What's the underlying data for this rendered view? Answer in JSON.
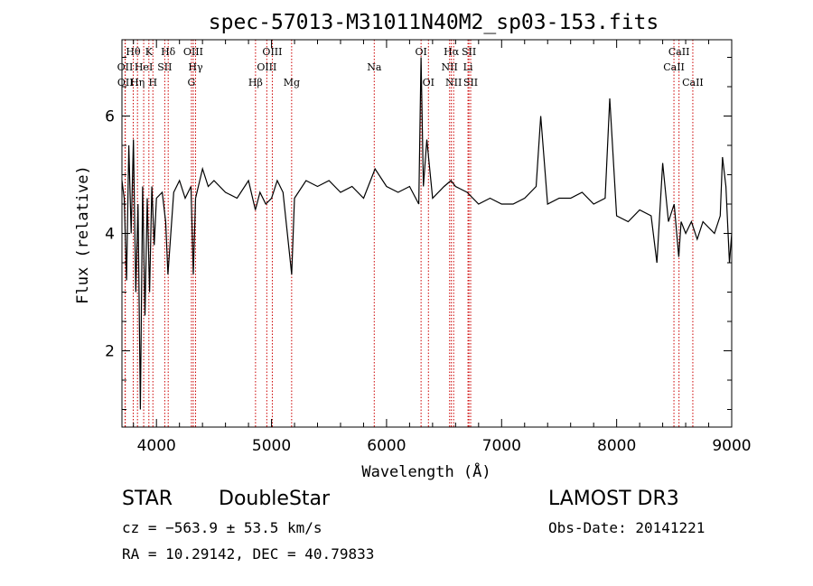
{
  "chart_data": {
    "type": "line",
    "title": "spec-57013-M31011N40M2_sp03-153.fits",
    "xlabel": "Wavelength (Å)",
    "ylabel": "Flux (relative)",
    "xlim": [
      3700,
      9000
    ],
    "ylim": [
      0.7,
      7.3
    ],
    "x_ticks": [
      4000,
      5000,
      6000,
      7000,
      8000,
      9000
    ],
    "y_ticks": [
      2,
      4,
      6
    ],
    "line_color": "#000000",
    "marker_color": "#cc0000",
    "lines": [
      {
        "label": "OII",
        "wave": 3727,
        "row": 1
      },
      {
        "label": "OII",
        "wave": 3729,
        "row": 2
      },
      {
        "label": "Hθ",
        "wave": 3798,
        "row": 0
      },
      {
        "label": "Hη",
        "wave": 3835,
        "row": 2
      },
      {
        "label": "HeI",
        "wave": 3889,
        "row": 1
      },
      {
        "label": "K",
        "wave": 3934,
        "row": 0
      },
      {
        "label": "H",
        "wave": 3969,
        "row": 2
      },
      {
        "label": "SII",
        "wave": 4072,
        "row": 1
      },
      {
        "label": "Hδ",
        "wave": 4102,
        "row": 0
      },
      {
        "label": "G",
        "wave": 4304,
        "row": 2
      },
      {
        "label": "OIII",
        "wave": 4320,
        "row": 0
      },
      {
        "label": "Hγ",
        "wave": 4340,
        "row": 1
      },
      {
        "label": "Hβ",
        "wave": 4861,
        "row": 2
      },
      {
        "label": "OIII",
        "wave": 4959,
        "row": 1
      },
      {
        "label": "OIII",
        "wave": 5007,
        "row": 0
      },
      {
        "label": "Mg",
        "wave": 5175,
        "row": 2
      },
      {
        "label": "Na",
        "wave": 5893,
        "row": 1
      },
      {
        "label": "OI",
        "wave": 6300,
        "row": 0
      },
      {
        "label": "OI",
        "wave": 6364,
        "row": 2
      },
      {
        "label": "NII",
        "wave": 6548,
        "row": 1
      },
      {
        "label": "Hα",
        "wave": 6563,
        "row": 0
      },
      {
        "label": "NII",
        "wave": 6583,
        "row": 2
      },
      {
        "label": "Li",
        "wave": 6708,
        "row": 1
      },
      {
        "label": "SII",
        "wave": 6716,
        "row": 0
      },
      {
        "label": "SII",
        "wave": 6731,
        "row": 2
      },
      {
        "label": "CaII",
        "wave": 8498,
        "row": 1
      },
      {
        "label": "CaII",
        "wave": 8542,
        "row": 0
      },
      {
        "label": "CaII",
        "wave": 8662,
        "row": 2
      }
    ],
    "spectrum": {
      "wave": [
        3700,
        3720,
        3740,
        3760,
        3780,
        3800,
        3820,
        3840,
        3860,
        3880,
        3900,
        3920,
        3940,
        3960,
        3980,
        4000,
        4050,
        4080,
        4100,
        4150,
        4200,
        4250,
        4300,
        4320,
        4340,
        4400,
        4450,
        4500,
        4600,
        4700,
        4800,
        4860,
        4900,
        4950,
        5000,
        5050,
        5100,
        5175,
        5200,
        5300,
        5400,
        5500,
        5600,
        5700,
        5800,
        5900,
        6000,
        6100,
        6200,
        6280,
        6300,
        6320,
        6350,
        6400,
        6500,
        6560,
        6600,
        6700,
        6800,
        6900,
        7000,
        7100,
        7200,
        7300,
        7340,
        7400,
        7500,
        7600,
        7700,
        7800,
        7900,
        7940,
        8000,
        8100,
        8200,
        8300,
        8350,
        8400,
        8450,
        8500,
        8540,
        8560,
        8600,
        8650,
        8700,
        8750,
        8800,
        8850,
        8900,
        8920,
        8950,
        8980,
        9000
      ],
      "flux": [
        4.9,
        4.6,
        3.2,
        5.5,
        4.0,
        5.6,
        3.0,
        4.5,
        1.0,
        4.8,
        2.6,
        4.6,
        3.0,
        4.8,
        3.8,
        4.6,
        4.7,
        4.2,
        3.3,
        4.7,
        4.9,
        4.6,
        4.8,
        3.3,
        4.6,
        5.1,
        4.8,
        4.9,
        4.7,
        4.6,
        4.9,
        4.4,
        4.7,
        4.5,
        4.6,
        4.9,
        4.7,
        3.3,
        4.6,
        4.9,
        4.8,
        4.9,
        4.7,
        4.8,
        4.6,
        5.1,
        4.8,
        4.7,
        4.8,
        4.5,
        7.0,
        4.8,
        5.6,
        4.6,
        4.8,
        4.9,
        4.8,
        4.7,
        4.5,
        4.6,
        4.5,
        4.5,
        4.6,
        4.8,
        6.0,
        4.5,
        4.6,
        4.6,
        4.7,
        4.5,
        4.6,
        6.3,
        4.3,
        4.2,
        4.4,
        4.3,
        3.5,
        5.2,
        4.2,
        4.5,
        3.6,
        4.2,
        4.0,
        4.2,
        3.9,
        4.2,
        4.1,
        4.0,
        4.3,
        5.3,
        4.8,
        3.5,
        4.0
      ]
    }
  },
  "footer": {
    "class_label": "STAR",
    "subclass": "DoubleStar",
    "survey": "LAMOST DR3",
    "cz": "cz = −563.9 ± 53.5 km/s",
    "obs_date": "Obs-Date: 20141221",
    "coords": "RA =  10.29142, DEC =  40.79833"
  }
}
